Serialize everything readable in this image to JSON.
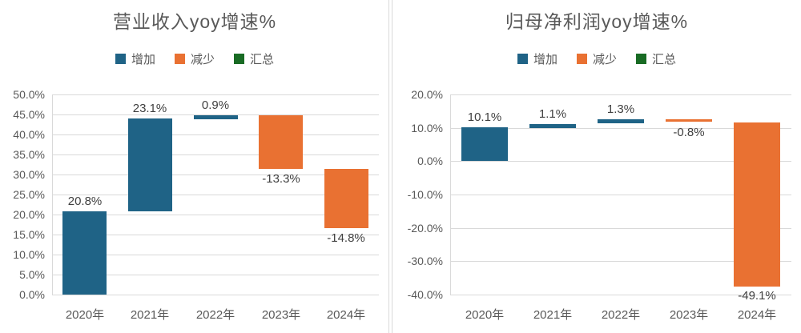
{
  "page": {
    "background": "#ffffff"
  },
  "colors": {
    "increase": "#1f6386",
    "decrease": "#e97132",
    "total": "#196b24",
    "axis_text": "#595959",
    "title_text": "#595959",
    "data_label_text": "#404040",
    "gridline": "#d9d9d9",
    "divider": "#d9d9d9"
  },
  "chart_data": [
    {
      "type": "waterfall",
      "title": "营业收入yoy增速%",
      "categories": [
        "2020年",
        "2021年",
        "2022年",
        "2023年",
        "2024年"
      ],
      "values": [
        20.8,
        23.1,
        0.9,
        -13.3,
        -14.8
      ],
      "data_labels": [
        "20.8%",
        "23.1%",
        "0.9%",
        "-13.3%",
        "-14.8%"
      ],
      "running_totals": [
        20.8,
        43.9,
        44.8,
        31.5,
        16.7
      ],
      "legend_position": "top",
      "grid": true,
      "legend": [
        {
          "label": "增加",
          "role": "increase",
          "color": "#1f6386"
        },
        {
          "label": "减少",
          "role": "decrease",
          "color": "#e97132"
        },
        {
          "label": "汇总",
          "role": "total",
          "color": "#196b24"
        }
      ],
      "ylim": [
        0,
        50
      ],
      "yticks": [
        {
          "value": 50,
          "label": "50.0%"
        },
        {
          "value": 45,
          "label": "45.0%"
        },
        {
          "value": 40,
          "label": "40.0%"
        },
        {
          "value": 35,
          "label": "35.0%"
        },
        {
          "value": 30,
          "label": "30.0%"
        },
        {
          "value": 25,
          "label": "25.0%"
        },
        {
          "value": 20,
          "label": "20.0%"
        },
        {
          "value": 15,
          "label": "15.0%"
        },
        {
          "value": 10,
          "label": "10.0%"
        },
        {
          "value": 5,
          "label": "5.0%"
        },
        {
          "value": 0,
          "label": "0.0%"
        }
      ]
    },
    {
      "type": "waterfall",
      "title": "归母净利润yoy增速%",
      "categories": [
        "2020年",
        "2021年",
        "2022年",
        "2023年",
        "2024年"
      ],
      "values": [
        10.1,
        1.1,
        1.3,
        -0.8,
        -49.1
      ],
      "data_labels": [
        "10.1%",
        "1.1%",
        "1.3%",
        "-0.8%",
        "-49.1%"
      ],
      "running_totals": [
        10.1,
        11.2,
        12.5,
        11.7,
        -37.4
      ],
      "legend_position": "top",
      "grid": true,
      "legend": [
        {
          "label": "增加",
          "role": "increase",
          "color": "#1f6386"
        },
        {
          "label": "减少",
          "role": "decrease",
          "color": "#e97132"
        },
        {
          "label": "汇总",
          "role": "total",
          "color": "#196b24"
        }
      ],
      "ylim": [
        -40,
        20
      ],
      "yticks": [
        {
          "value": 20,
          "label": "20.0%"
        },
        {
          "value": 10,
          "label": "10.0%"
        },
        {
          "value": 0,
          "label": "0.0%"
        },
        {
          "value": -10,
          "label": "-10.0%"
        },
        {
          "value": -20,
          "label": "-20.0%"
        },
        {
          "value": -30,
          "label": "-30.0%"
        },
        {
          "value": -40,
          "label": "-40.0%"
        }
      ]
    }
  ]
}
